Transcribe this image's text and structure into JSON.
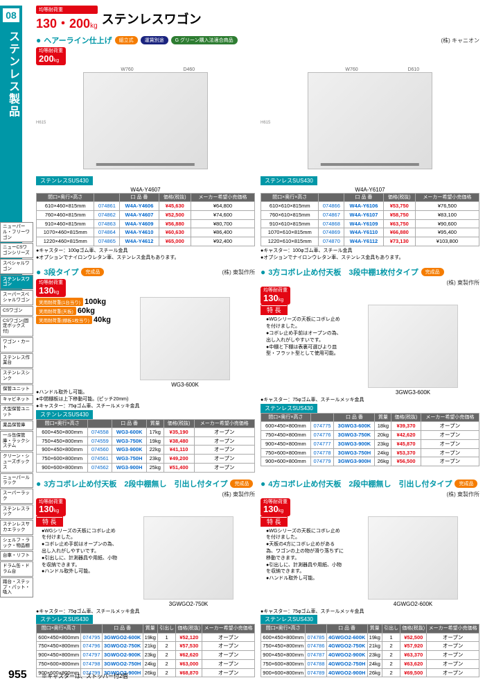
{
  "section_num": "08",
  "section_title": "ステンレス製品",
  "page_number": "955",
  "footnote": "※キャスターは、ストッパー付2個",
  "header": {
    "load_label": "均等耐荷重",
    "load_values": "130・200",
    "kg": "kg",
    "title": "ステンレスワゴン"
  },
  "sidebar": [
    "ニューパール・フリーワゴン",
    "ニューCSワゴンシリーズ",
    "スペシャルワゴン",
    "ステンレスワゴン",
    "スーパースペシャルワゴン",
    "CSワゴン",
    "CSワゴン(固定ボックス付)",
    "ワゴン・カート",
    "ステンレス作業台",
    "ステンレスシンク",
    "保管ユニット",
    "キャビネット",
    "大型保管ユニット",
    "薬品保管庫",
    "一斗缶保管庫・ラックシステム",
    "クリーン・シューズボックス",
    "ニューパールラック",
    "スーパーラック",
    "ステンレスラック",
    "ステンレスサカエラック",
    "シェルフ・ラック・物品棚",
    "台車・リフト",
    "ドラム缶・ドラム台",
    "踏台・ステップ・パット・吸入"
  ],
  "sidebar_active_index": 3,
  "block1": {
    "subtitle": "ヘアーライン仕上げ",
    "tags": [
      "組立式",
      "運賃別途"
    ],
    "green_tag": "G グリーン購入法適合商品",
    "company": "(株) キャニオン",
    "load_badge": "均等耐荷重",
    "load_kg": "200",
    "material": "ステンレスSUS430",
    "notes1": "●キャスター：100φゴム車、スチール金具",
    "notes2": "●オプションでナイロンウレタン車、ステンレス金具もあります。",
    "left": {
      "model_shown": "W4A-Y4607",
      "dims": {
        "w": "W760",
        "d": "D460",
        "h": "H615"
      },
      "headers": [
        "間口×奥行×高さ",
        "",
        "口 品 番",
        "価格(税抜)",
        "メーカー希望小売価格"
      ],
      "rows": [
        [
          "610×460×815mm",
          "074861",
          "W4A-Y4606",
          "¥45,630",
          "¥64,800"
        ],
        [
          "760×460×815mm",
          "074862",
          "W4A-Y4607",
          "¥52,500",
          "¥74,600"
        ],
        [
          "910×460×815mm",
          "074863",
          "W4A-Y4609",
          "¥56,880",
          "¥80,700"
        ],
        [
          "1070×460×815mm",
          "074864",
          "W4A-Y4610",
          "¥60,630",
          "¥86,400"
        ],
        [
          "1220×460×815mm",
          "074865",
          "W4A-Y4612",
          "¥65,000",
          "¥92,400"
        ]
      ]
    },
    "right": {
      "model_shown": "W4A-Y6107",
      "dims": {
        "w": "W760",
        "d": "D610",
        "h": "H615"
      },
      "headers": [
        "間口×奥行×高さ",
        "",
        "口 品 番",
        "価格(税抜)",
        "メーカー希望小売価格"
      ],
      "rows": [
        [
          "610×610×815mm",
          "074866",
          "W4A-Y6106",
          "¥53,750",
          "¥76,500"
        ],
        [
          "760×610×815mm",
          "074867",
          "W4A-Y6107",
          "¥58,750",
          "¥83,100"
        ],
        [
          "910×610×815mm",
          "074868",
          "W4A-Y6109",
          "¥63,750",
          "¥90,600"
        ],
        [
          "1070×610×815mm",
          "074869",
          "W4A-Y6110",
          "¥66,880",
          "¥95,400"
        ],
        [
          "1220×610×815mm",
          "074870",
          "W4A-Y6112",
          "¥73,130",
          "¥103,800"
        ]
      ]
    }
  },
  "block2": {
    "left": {
      "title": "3段タイプ",
      "tag": "完成品",
      "company": "(株) 東製作所",
      "load_kg": "130",
      "specs": [
        [
          "実用耐荷重(1台当り)",
          "100kg"
        ],
        [
          "実用耐荷重(天板)",
          "60kg"
        ],
        [
          "実用耐荷重(棚板1枚当り)",
          "40kg"
        ]
      ],
      "notes": [
        "●ハンドル取外し可能。",
        "●中間棚板は上下移動可能。(ピッチ20mm)",
        "●キャスター：75φゴム車、スチールメッキ金具"
      ],
      "model_shown": "WG3-600K",
      "material": "ステンレスSUS430",
      "headers": [
        "間口×奥行×高さ",
        "",
        "口 品 番",
        "質量",
        "価格(税抜)",
        "メーカー希望小売価格"
      ],
      "rows": [
        [
          "600×450×800mm",
          "074558",
          "WG3-600K",
          "17kg",
          "¥35,190",
          "オープン"
        ],
        [
          "750×450×800mm",
          "074559",
          "WG3-750K",
          "19kg",
          "¥38,480",
          "オープン"
        ],
        [
          "900×450×800mm",
          "074560",
          "WG3-900K",
          "22kg",
          "¥41,110",
          "オープン"
        ],
        [
          "750×600×800mm",
          "074561",
          "WG3-750H",
          "23kg",
          "¥49,200",
          "オープン"
        ],
        [
          "900×600×800mm",
          "074562",
          "WG3-900H",
          "25kg",
          "¥51,400",
          "オープン"
        ]
      ]
    },
    "right": {
      "title": "3方コボレ止め付天板　3段中棚1枚付タイプ",
      "tag": "完成品",
      "company": "(株) 東製作所",
      "load_kg": "130",
      "feature_title": "特 長",
      "features": [
        "●WGシリーズの天板にコボレ止めを付けました。",
        "●コボレ止め手前はオープンの為、出し入れがしやすいです。",
        "●中棚と下棚は表裏可選びより皿型・フラット型として使用可能。"
      ],
      "notes": [
        "●キャスター：75φゴム車、スチールメッキ金具"
      ],
      "model_shown": "3GWG3-600K",
      "material": "ステンレスSUS430",
      "headers": [
        "間口×奥行×高さ",
        "",
        "口 品 番",
        "質量",
        "価格(税抜)",
        "メーカー希望小売価格"
      ],
      "rows": [
        [
          "600×450×800mm",
          "074775",
          "3GWG3-600K",
          "18kg",
          "¥39,370",
          "オープン"
        ],
        [
          "750×450×800mm",
          "074776",
          "3GWG3-750K",
          "20kg",
          "¥42,620",
          "オープン"
        ],
        [
          "900×450×800mm",
          "074777",
          "3GWG3-900K",
          "23kg",
          "¥45,870",
          "オープン"
        ],
        [
          "750×600×800mm",
          "074778",
          "3GWG3-750H",
          "24kg",
          "¥53,370",
          "オープン"
        ],
        [
          "900×600×800mm",
          "074779",
          "3GWG3-900H",
          "26kg",
          "¥56,500",
          "オープン"
        ]
      ]
    }
  },
  "block3": {
    "left": {
      "title": "3方コボレ止め付天板　2段中棚無し　引出し付タイプ",
      "tag": "完成品",
      "company": "(株) 東製作所",
      "load_kg": "130",
      "feature_title": "特 長",
      "features": [
        "●WGシリーズの天板にコボレ止めを付けました。",
        "●コボレ止め手前はオープンの為、出し入れがしやすいです。",
        "●引出しに、計測器具や用紙、小物を収納できます。",
        "●ハンドル取外し可能。"
      ],
      "notes": [
        "●キャスター：75φゴム車、スチールメッキ金具"
      ],
      "model_shown": "3GWGO2-750K",
      "material": "ステンレスSUS430",
      "headers": [
        "間口×奥行×高さ",
        "",
        "口 品 番",
        "質量",
        "引出し",
        "価格(税抜)",
        "メーカー希望小売価格"
      ],
      "rows": [
        [
          "600×450×800mm",
          "074795",
          "3GWGO2-600K",
          "19kg",
          "1",
          "¥52,120",
          "オープン"
        ],
        [
          "750×450×800mm",
          "074796",
          "3GWGO2-750K",
          "21kg",
          "2",
          "¥57,530",
          "オープン"
        ],
        [
          "900×450×800mm",
          "074797",
          "3GWGO2-900K",
          "23kg",
          "2",
          "¥62,620",
          "オープン"
        ],
        [
          "750×600×800mm",
          "074798",
          "3GWGO2-750H",
          "24kg",
          "2",
          "¥63,000",
          "オープン"
        ],
        [
          "900×600×800mm",
          "074799",
          "3GWGO2-900H",
          "26kg",
          "2",
          "¥68,870",
          "オープン"
        ]
      ]
    },
    "right": {
      "title": "4方コボレ止め付天板　2段中棚無し　引出し付タイプ",
      "tag": "完成品",
      "company": "(株) 東製作所",
      "load_kg": "130",
      "feature_title": "特 長",
      "features": [
        "●WGシリーズの天板にコボレ止めを付けました。",
        "●天板の4方にコボレ止めがある為、ワゴンの上の物が滑り落ちずに移動できます。",
        "●引出しに、計測器具や用紙、小物を収納できます。",
        "●ハンドル取外し可能。"
      ],
      "notes": [
        "●キャスター：75φゴム車、スチールメッキ金具"
      ],
      "model_shown": "4GWGO2-600K",
      "material": "ステンレスSUS430",
      "headers": [
        "間口×奥行×高さ",
        "",
        "口 品 番",
        "質量",
        "引出し",
        "価格(税抜)",
        "メーカー希望小売価格"
      ],
      "rows": [
        [
          "600×450×800mm",
          "074785",
          "4GWGO2-600K",
          "19kg",
          "1",
          "¥52,500",
          "オープン"
        ],
        [
          "750×450×800mm",
          "074786",
          "4GWGO2-750K",
          "21kg",
          "2",
          "¥57,920",
          "オープン"
        ],
        [
          "900×450×800mm",
          "074787",
          "4GWGO2-900K",
          "23kg",
          "2",
          "¥63,370",
          "オープン"
        ],
        [
          "750×600×800mm",
          "074788",
          "4GWGO2-750H",
          "24kg",
          "2",
          "¥63,620",
          "オープン"
        ],
        [
          "900×600×800mm",
          "074789",
          "4GWGO2-900H",
          "26kg",
          "2",
          "¥69,500",
          "オープン"
        ]
      ]
    }
  }
}
